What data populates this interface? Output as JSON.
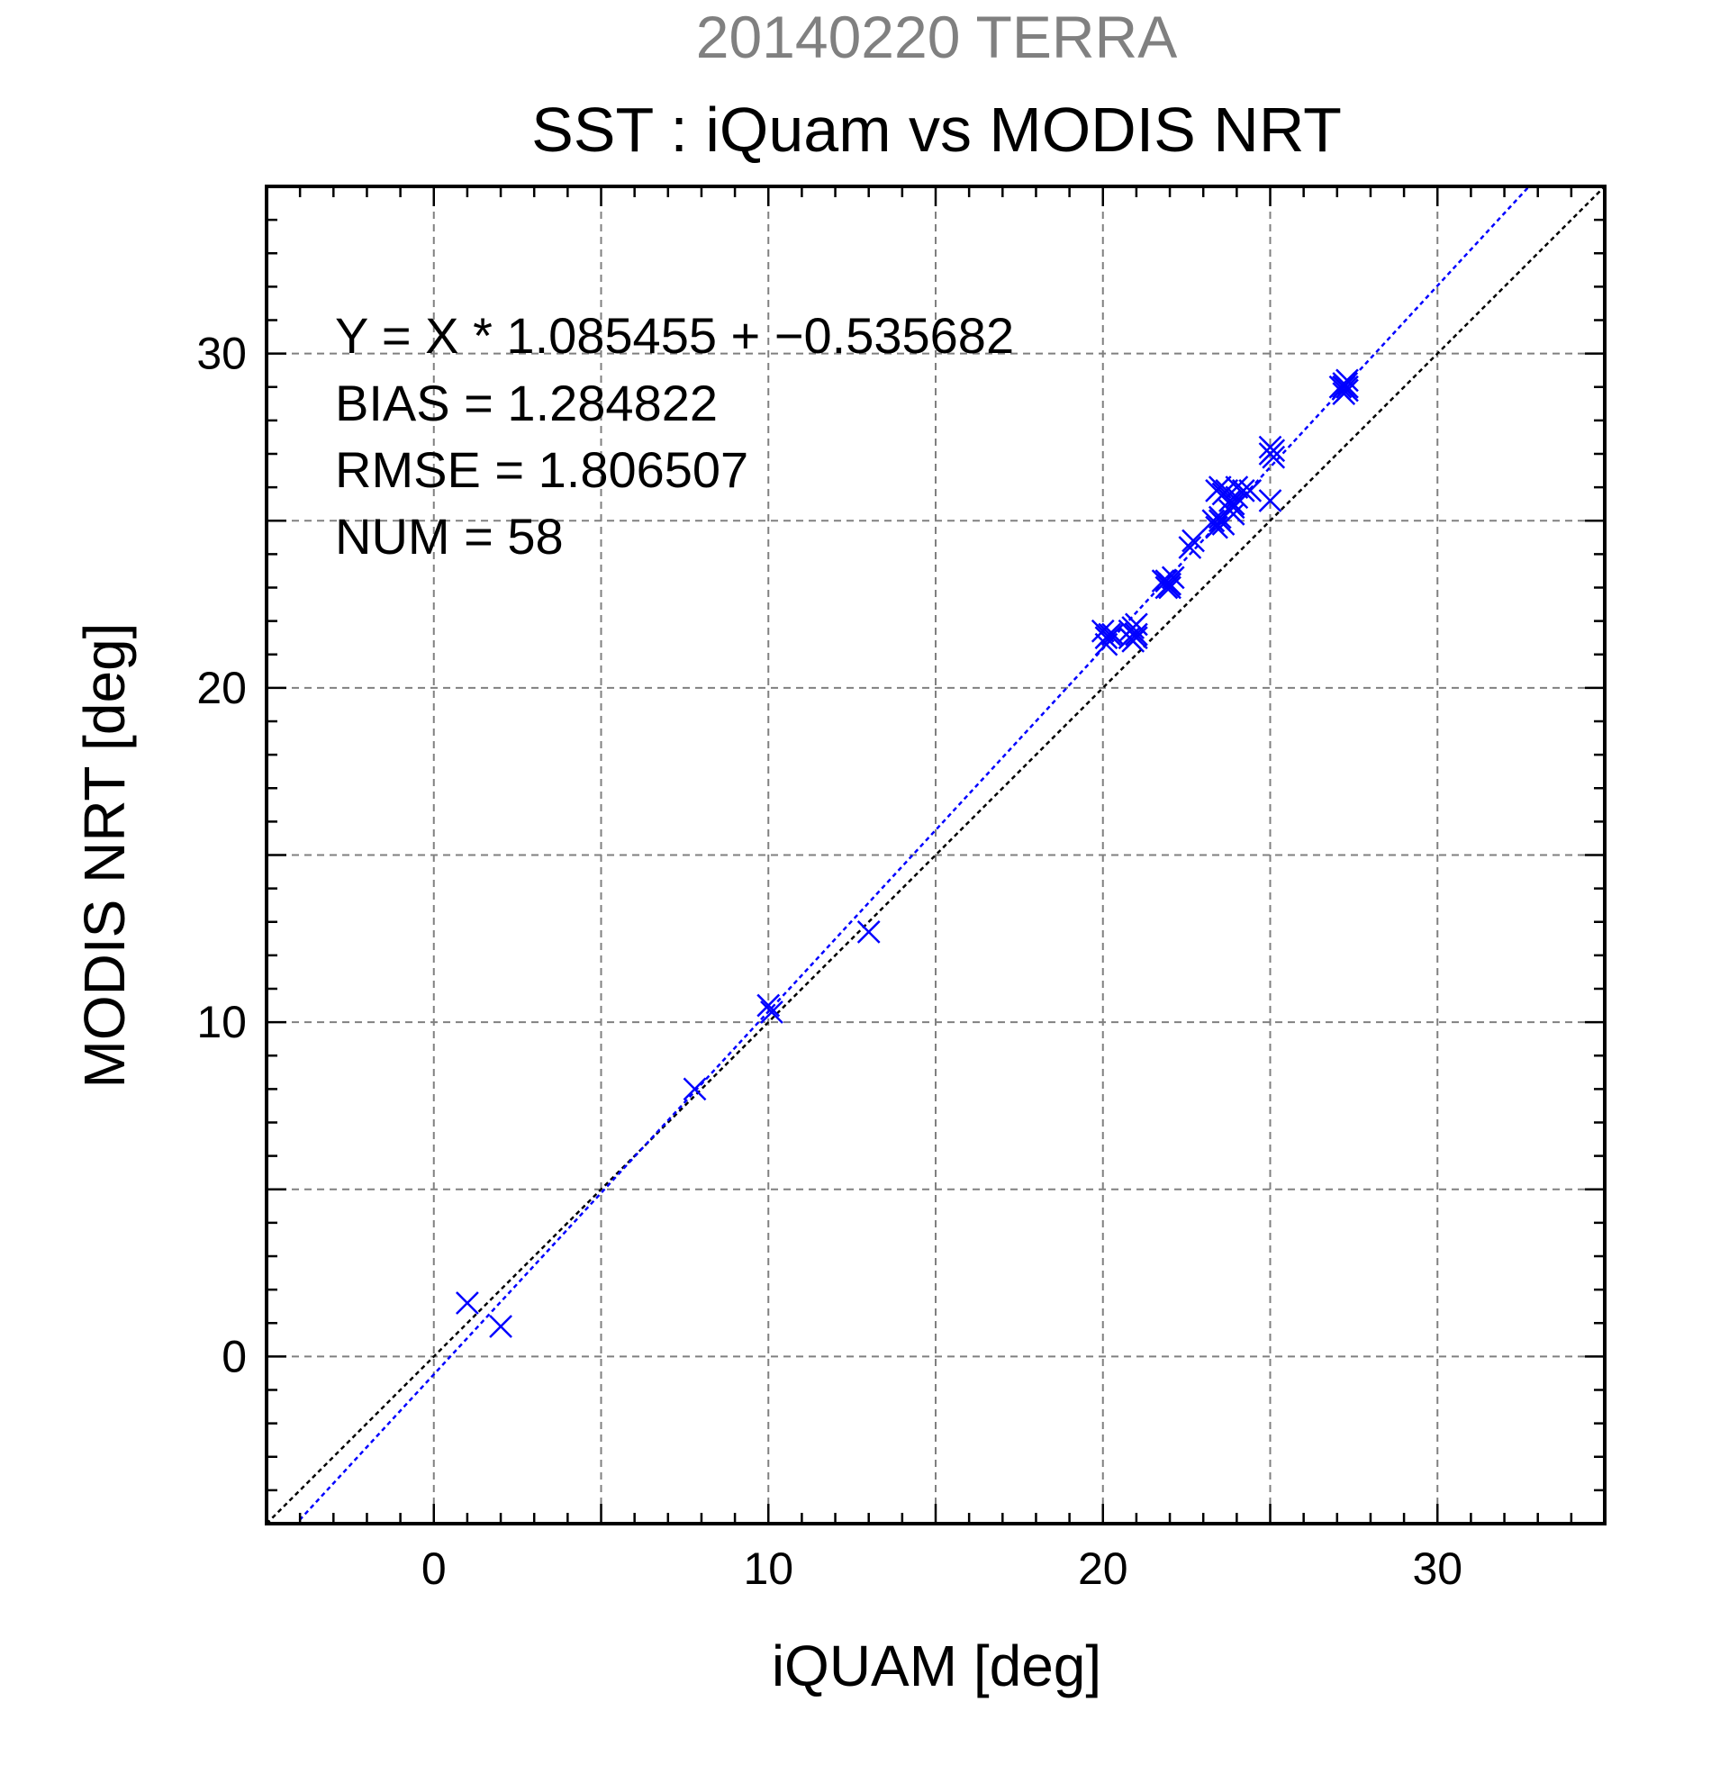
{
  "chart_data": {
    "type": "scatter",
    "title_top": "20140220 TERRA",
    "title": "SST : iQuam vs MODIS NRT",
    "xlabel": "iQUAM [deg]",
    "ylabel": "MODIS NRT [deg]",
    "xlim": [
      -5,
      35
    ],
    "ylim": [
      -5,
      35
    ],
    "major_ticks": [
      0,
      10,
      20,
      30
    ],
    "grid_ticks": [
      0,
      5,
      10,
      15,
      20,
      25,
      30
    ],
    "minor_tick_step": 1,
    "grid": true,
    "stats": {
      "equation": "Y = X * 1.085455 + −0.535682",
      "bias": "BIAS = 1.284822",
      "rmse": "RMSE = 1.806507",
      "num": "NUM = 58"
    },
    "regression": {
      "slope": 1.085455,
      "intercept": -0.535682
    },
    "identity_line": {
      "slope": 1,
      "intercept": 0
    },
    "colors": {
      "points": "#0000ff",
      "regression": "#0000ff",
      "identity": "#000000",
      "grid": "#808080",
      "title_top": "#808080"
    },
    "series": [
      {
        "marker": "x",
        "x": [
          1.0,
          2.0,
          7.8,
          10.0,
          10.1,
          13.0,
          20.0,
          20.1,
          20.3,
          20.8,
          20.9,
          21.0,
          20.9,
          20.8,
          21.0,
          21.8,
          21.9,
          22.0,
          22.1,
          21.9,
          22.0,
          22.6,
          22.7,
          23.3,
          23.4,
          23.5,
          23.4,
          23.5,
          23.6,
          23.6,
          23.7,
          23.8,
          23.9,
          23.8,
          23.9,
          24.0,
          24.0,
          24.2,
          24.4,
          25.0,
          25.0,
          25.1,
          25.0,
          27.1,
          27.2,
          27.3,
          27.2,
          27.3,
          27.2,
          27.3,
          20.1,
          20.2,
          21.0,
          22.0,
          23.5,
          23.9,
          25.1,
          27.2
        ],
        "y": [
          1.6,
          0.9,
          8.0,
          10.5,
          10.3,
          12.7,
          21.7,
          21.5,
          21.6,
          21.5,
          21.8,
          21.6,
          21.4,
          21.7,
          21.5,
          23.2,
          23.0,
          23.1,
          23.3,
          23.2,
          23.0,
          24.2,
          24.4,
          25.0,
          24.8,
          25.1,
          25.9,
          26.0,
          25.8,
          24.9,
          25.9,
          25.6,
          25.4,
          25.3,
          25.2,
          25.7,
          26.0,
          25.9,
          25.9,
          27.0,
          27.2,
          26.9,
          25.6,
          29.0,
          29.1,
          28.9,
          29.0,
          29.2,
          28.8,
          29.0,
          21.3,
          21.6,
          21.9,
          23.1,
          25.0,
          25.5,
          27.1,
          29.0
        ]
      }
    ]
  }
}
